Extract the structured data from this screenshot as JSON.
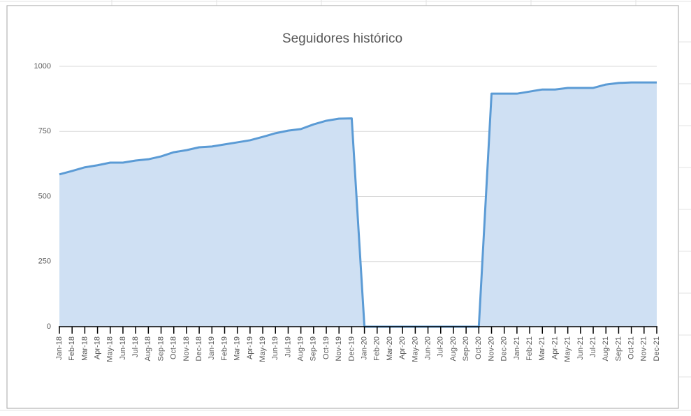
{
  "chart_data": {
    "type": "area",
    "title": "Seguidores histórico",
    "categories": [
      "Jan-18",
      "Feb-18",
      "Mar-18",
      "Apr-18",
      "May-18",
      "Jun-18",
      "Jul-18",
      "Aug-18",
      "Sep-18",
      "Oct-18",
      "Nov-18",
      "Dec-18",
      "Jan-19",
      "Feb-19",
      "Mar-19",
      "Apr-19",
      "May-19",
      "Jun-19",
      "Jul-19",
      "Aug-19",
      "Sep-19",
      "Oct-19",
      "Nov-19",
      "Dec-19",
      "Jan-20",
      "Feb-20",
      "Mar-20",
      "Apr-20",
      "May-20",
      "Jun-20",
      "Jul-20",
      "Aug-20",
      "Sep-20",
      "Oct-20",
      "Nov-20",
      "Dec-20",
      "Jan-21",
      "Feb-21",
      "Mar-21",
      "Apr-21",
      "May-21",
      "Jun-21",
      "Jul-21",
      "Aug-21",
      "Sep-21",
      "Oct-21",
      "Nov-21",
      "Dec-21"
    ],
    "values": [
      585,
      598,
      612,
      620,
      630,
      630,
      638,
      643,
      654,
      670,
      678,
      689,
      692,
      700,
      708,
      716,
      729,
      743,
      753,
      759,
      777,
      791,
      799,
      800,
      0,
      0,
      0,
      0,
      0,
      0,
      0,
      0,
      0,
      0,
      895,
      895,
      895,
      903,
      911,
      911,
      917,
      917,
      917,
      930,
      936,
      938,
      938,
      938
    ],
    "color": "#5b9bd5",
    "fill": "#cfe0f3",
    "ylim": [
      0,
      1000
    ],
    "yticks": [
      0,
      250,
      500,
      750,
      1000
    ],
    "grid": true
  }
}
